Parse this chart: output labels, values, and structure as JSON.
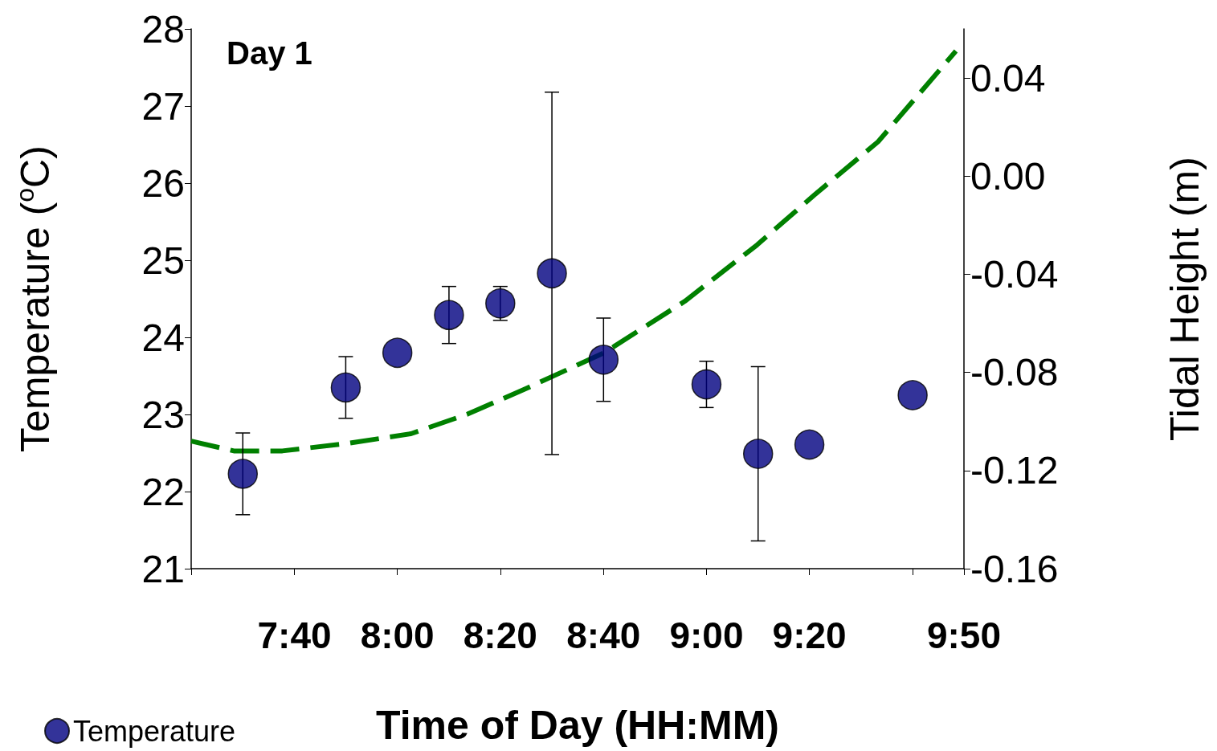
{
  "chart_data": {
    "type": "scatter",
    "xlabel": "Time of Day (HH:MM)",
    "ylabel": "Temperature ($^{o}$C)",
    "y2label": "Tidal Height (m)",
    "annotations": [
      "Day 1"
    ],
    "xlim": [
      7.333,
      9.833
    ],
    "xticks": [
      {
        "value": 7.333,
        "label": null
      },
      {
        "value": 7.667,
        "label": "7:40"
      },
      {
        "value": 8,
        "label": "8:00"
      },
      {
        "value": 8.333,
        "label": "8:20"
      },
      {
        "value": 8.667,
        "label": "8:40"
      },
      {
        "value": 9,
        "label": "9:00"
      },
      {
        "value": 9.333,
        "label": "9:20"
      },
      {
        "value": 9.667,
        "label": null
      },
      {
        "value": 9.833,
        "label": "9:50"
      }
    ],
    "ylim": [
      21,
      28
    ],
    "yticks": [
      21,
      22,
      23,
      24,
      25,
      26,
      27,
      28
    ],
    "y2lim": [
      -0.16,
      0.06
    ],
    "y2ticks": [
      {
        "value": -0.16,
        "label": "-0.16"
      },
      {
        "value": -0.12,
        "label": "-0.12"
      },
      {
        "value": -0.08,
        "label": "-0.08"
      },
      {
        "value": -0.04,
        "label": "-0.04"
      },
      {
        "value": 0,
        "label": "0.00"
      },
      {
        "value": 0.04,
        "label": "0.04"
      }
    ],
    "grid": false,
    "legend": "bottom left",
    "series": [
      {
        "name": "Temperature",
        "color": "#000080",
        "marker": "circle",
        "x": [
          7.5,
          7.833,
          8,
          8.167,
          8.333,
          8.5,
          8.667,
          9,
          9.167,
          9.333,
          9.667
        ],
        "values": [
          22.23,
          23.35,
          23.8,
          24.29,
          24.44,
          24.83,
          23.71,
          23.39,
          22.49,
          22.61,
          23.25
        ],
        "errors": [
          0.53,
          0.4,
          null,
          0.37,
          0.22,
          2.35,
          0.54,
          0.3,
          1.13,
          null,
          null
        ]
      },
      {
        "type": "line",
        "axis": "y2",
        "color": "#008000",
        "line_style": "dashed",
        "marker": "none",
        "x": [
          7.333,
          7.471,
          7.628,
          7.836,
          8.044,
          8.227,
          8.409,
          8.669,
          8.93,
          9.164,
          9.346,
          9.555,
          9.807
        ],
        "values": [
          -0.108,
          -0.112,
          -0.112,
          -0.109,
          -0.105,
          -0.097,
          -0.087,
          -0.072,
          -0.051,
          -0.028,
          -0.008,
          0.014,
          0.051
        ]
      }
    ]
  }
}
